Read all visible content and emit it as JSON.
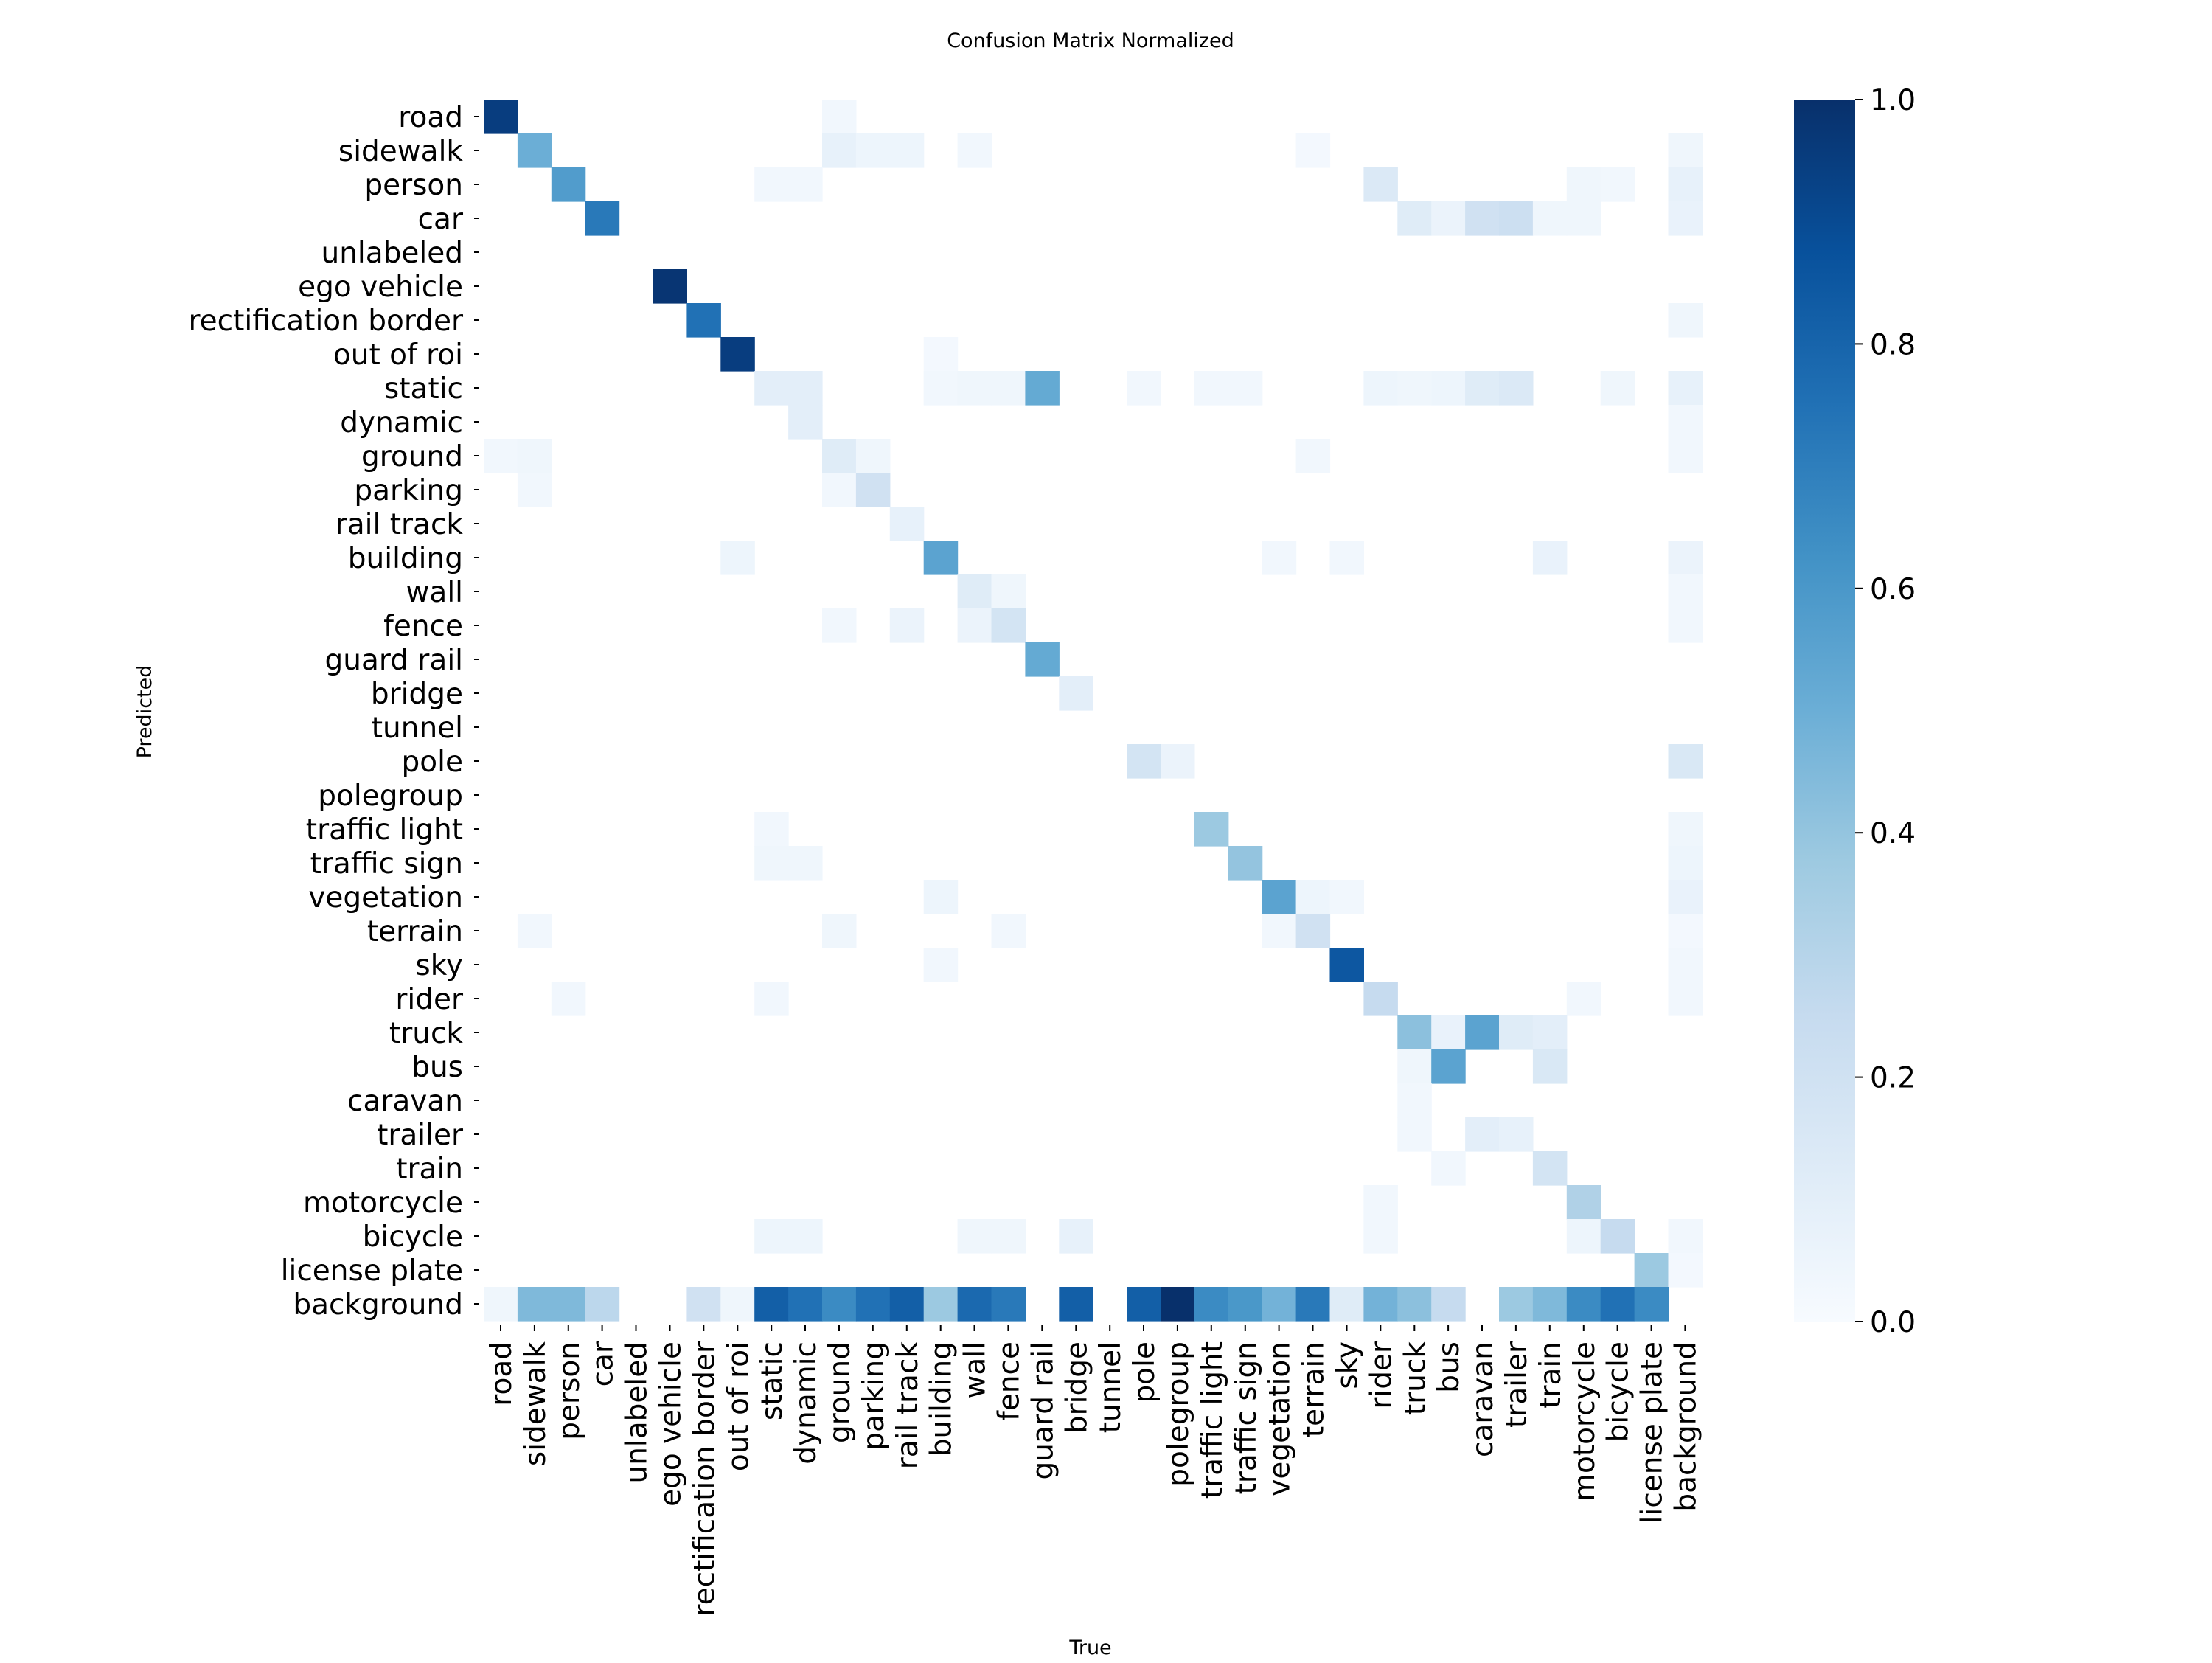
{
  "chart_data": {
    "type": "heatmap",
    "title": "Confusion Matrix Normalized",
    "xlabel": "True",
    "ylabel": "Predicted",
    "labels": [
      "road",
      "sidewalk",
      "person",
      "car",
      "unlabeled",
      "ego vehicle",
      "rectification border",
      "out of roi",
      "static",
      "dynamic",
      "ground",
      "parking",
      "rail track",
      "building",
      "wall",
      "fence",
      "guard rail",
      "bridge",
      "tunnel",
      "pole",
      "polegroup",
      "traffic light",
      "traffic sign",
      "vegetation",
      "terrain",
      "sky",
      "rider",
      "truck",
      "bus",
      "caravan",
      "trailer",
      "train",
      "motorcycle",
      "bicycle",
      "license plate",
      "background"
    ],
    "colorbar": {
      "range": [
        0,
        1
      ],
      "ticks": [
        "0.0",
        "0.2",
        "0.4",
        "0.6",
        "0.8",
        "1.0"
      ],
      "colormap": "Blues"
    },
    "nonzero_cells": [
      {
        "predicted": "road",
        "true": "road",
        "value": 0.95
      },
      {
        "predicted": "road",
        "true": "ground",
        "value": 0.03
      },
      {
        "predicted": "sidewalk",
        "true": "sidewalk",
        "value": 0.5
      },
      {
        "predicted": "sidewalk",
        "true": "ground",
        "value": 0.08
      },
      {
        "predicted": "sidewalk",
        "true": "parking",
        "value": 0.05
      },
      {
        "predicted": "sidewalk",
        "true": "rail track",
        "value": 0.05
      },
      {
        "predicted": "sidewalk",
        "true": "wall",
        "value": 0.03
      },
      {
        "predicted": "sidewalk",
        "true": "terrain",
        "value": 0.02
      },
      {
        "predicted": "sidewalk",
        "true": "background",
        "value": 0.04
      },
      {
        "predicted": "person",
        "true": "person",
        "value": 0.58
      },
      {
        "predicted": "person",
        "true": "static",
        "value": 0.03
      },
      {
        "predicted": "person",
        "true": "dynamic",
        "value": 0.03
      },
      {
        "predicted": "person",
        "true": "rider",
        "value": 0.14
      },
      {
        "predicted": "person",
        "true": "motorcycle",
        "value": 0.04
      },
      {
        "predicted": "person",
        "true": "bicycle",
        "value": 0.03
      },
      {
        "predicted": "person",
        "true": "background",
        "value": 0.08
      },
      {
        "predicted": "car",
        "true": "car",
        "value": 0.72
      },
      {
        "predicted": "car",
        "true": "truck",
        "value": 0.12
      },
      {
        "predicted": "car",
        "true": "bus",
        "value": 0.06
      },
      {
        "predicted": "car",
        "true": "caravan",
        "value": 0.2
      },
      {
        "predicted": "car",
        "true": "trailer",
        "value": 0.22
      },
      {
        "predicted": "car",
        "true": "train",
        "value": 0.04
      },
      {
        "predicted": "car",
        "true": "motorcycle",
        "value": 0.04
      },
      {
        "predicted": "car",
        "true": "background",
        "value": 0.07
      },
      {
        "predicted": "ego vehicle",
        "true": "ego vehicle",
        "value": 0.98
      },
      {
        "predicted": "rectification border",
        "true": "rectification border",
        "value": 0.75
      },
      {
        "predicted": "rectification border",
        "true": "background",
        "value": 0.04
      },
      {
        "predicted": "out of roi",
        "true": "out of roi",
        "value": 0.95
      },
      {
        "predicted": "out of roi",
        "true": "building",
        "value": 0.02
      },
      {
        "predicted": "static",
        "true": "static",
        "value": 0.1
      },
      {
        "predicted": "static",
        "true": "dynamic",
        "value": 0.1
      },
      {
        "predicted": "static",
        "true": "building",
        "value": 0.03
      },
      {
        "predicted": "static",
        "true": "wall",
        "value": 0.04
      },
      {
        "predicted": "static",
        "true": "fence",
        "value": 0.04
      },
      {
        "predicted": "static",
        "true": "guard rail",
        "value": 0.52
      },
      {
        "predicted": "static",
        "true": "pole",
        "value": 0.03
      },
      {
        "predicted": "static",
        "true": "traffic light",
        "value": 0.03
      },
      {
        "predicted": "static",
        "true": "traffic sign",
        "value": 0.03
      },
      {
        "predicted": "static",
        "true": "rider",
        "value": 0.05
      },
      {
        "predicted": "static",
        "true": "truck",
        "value": 0.04
      },
      {
        "predicted": "static",
        "true": "bus",
        "value": 0.05
      },
      {
        "predicted": "static",
        "true": "caravan",
        "value": 0.12
      },
      {
        "predicted": "static",
        "true": "trailer",
        "value": 0.14
      },
      {
        "predicted": "static",
        "true": "bicycle",
        "value": 0.04
      },
      {
        "predicted": "static",
        "true": "background",
        "value": 0.08
      },
      {
        "predicted": "dynamic",
        "true": "dynamic",
        "value": 0.1
      },
      {
        "predicted": "dynamic",
        "true": "background",
        "value": 0.03
      },
      {
        "predicted": "ground",
        "true": "road",
        "value": 0.03
      },
      {
        "predicted": "ground",
        "true": "sidewalk",
        "value": 0.04
      },
      {
        "predicted": "ground",
        "true": "ground",
        "value": 0.12
      },
      {
        "predicted": "ground",
        "true": "parking",
        "value": 0.04
      },
      {
        "predicted": "ground",
        "true": "terrain",
        "value": 0.03
      },
      {
        "predicted": "ground",
        "true": "background",
        "value": 0.03
      },
      {
        "predicted": "parking",
        "true": "sidewalk",
        "value": 0.03
      },
      {
        "predicted": "parking",
        "true": "ground",
        "value": 0.03
      },
      {
        "predicted": "parking",
        "true": "parking",
        "value": 0.2
      },
      {
        "predicted": "rail track",
        "true": "rail track",
        "value": 0.08
      },
      {
        "predicted": "building",
        "true": "out of roi",
        "value": 0.05
      },
      {
        "predicted": "building",
        "true": "building",
        "value": 0.55
      },
      {
        "predicted": "building",
        "true": "vegetation",
        "value": 0.03
      },
      {
        "predicted": "building",
        "true": "sky",
        "value": 0.03
      },
      {
        "predicted": "building",
        "true": "train",
        "value": 0.07
      },
      {
        "predicted": "building",
        "true": "background",
        "value": 0.06
      },
      {
        "predicted": "wall",
        "true": "wall",
        "value": 0.12
      },
      {
        "predicted": "wall",
        "true": "fence",
        "value": 0.04
      },
      {
        "predicted": "wall",
        "true": "background",
        "value": 0.03
      },
      {
        "predicted": "fence",
        "true": "ground",
        "value": 0.03
      },
      {
        "predicted": "fence",
        "true": "rail track",
        "value": 0.06
      },
      {
        "predicted": "fence",
        "true": "wall",
        "value": 0.06
      },
      {
        "predicted": "fence",
        "true": "fence",
        "value": 0.18
      },
      {
        "predicted": "fence",
        "true": "background",
        "value": 0.03
      },
      {
        "predicted": "guard rail",
        "true": "guard rail",
        "value": 0.52
      },
      {
        "predicted": "bridge",
        "true": "bridge",
        "value": 0.1
      },
      {
        "predicted": "pole",
        "true": "pole",
        "value": 0.18
      },
      {
        "predicted": "pole",
        "true": "polegroup",
        "value": 0.06
      },
      {
        "predicted": "pole",
        "true": "background",
        "value": 0.15
      },
      {
        "predicted": "traffic light",
        "true": "static",
        "value": 0.03
      },
      {
        "predicted": "traffic light",
        "true": "traffic light",
        "value": 0.38
      },
      {
        "predicted": "traffic light",
        "true": "background",
        "value": 0.04
      },
      {
        "predicted": "traffic sign",
        "true": "static",
        "value": 0.04
      },
      {
        "predicted": "traffic sign",
        "true": "dynamic",
        "value": 0.04
      },
      {
        "predicted": "traffic sign",
        "true": "traffic sign",
        "value": 0.4
      },
      {
        "predicted": "traffic sign",
        "true": "background",
        "value": 0.05
      },
      {
        "predicted": "vegetation",
        "true": "building",
        "value": 0.05
      },
      {
        "predicted": "vegetation",
        "true": "vegetation",
        "value": 0.55
      },
      {
        "predicted": "vegetation",
        "true": "terrain",
        "value": 0.05
      },
      {
        "predicted": "vegetation",
        "true": "sky",
        "value": 0.03
      },
      {
        "predicted": "vegetation",
        "true": "background",
        "value": 0.07
      },
      {
        "predicted": "terrain",
        "true": "sidewalk",
        "value": 0.03
      },
      {
        "predicted": "terrain",
        "true": "ground",
        "value": 0.04
      },
      {
        "predicted": "terrain",
        "true": "fence",
        "value": 0.03
      },
      {
        "predicted": "terrain",
        "true": "vegetation",
        "value": 0.03
      },
      {
        "predicted": "terrain",
        "true": "terrain",
        "value": 0.2
      },
      {
        "predicted": "terrain",
        "true": "background",
        "value": 0.02
      },
      {
        "predicted": "sky",
        "true": "building",
        "value": 0.03
      },
      {
        "predicted": "sky",
        "true": "sky",
        "value": 0.85
      },
      {
        "predicted": "sky",
        "true": "background",
        "value": 0.03
      },
      {
        "predicted": "rider",
        "true": "person",
        "value": 0.03
      },
      {
        "predicted": "rider",
        "true": "static",
        "value": 0.03
      },
      {
        "predicted": "rider",
        "true": "rider",
        "value": 0.25
      },
      {
        "predicted": "rider",
        "true": "motorcycle",
        "value": 0.03
      },
      {
        "predicted": "rider",
        "true": "background",
        "value": 0.03
      },
      {
        "predicted": "truck",
        "true": "truck",
        "value": 0.42
      },
      {
        "predicted": "truck",
        "true": "bus",
        "value": 0.07
      },
      {
        "predicted": "truck",
        "true": "caravan",
        "value": 0.55
      },
      {
        "predicted": "truck",
        "true": "trailer",
        "value": 0.12
      },
      {
        "predicted": "truck",
        "true": "train",
        "value": 0.1
      },
      {
        "predicted": "bus",
        "true": "truck",
        "value": 0.04
      },
      {
        "predicted": "bus",
        "true": "bus",
        "value": 0.55
      },
      {
        "predicted": "bus",
        "true": "train",
        "value": 0.15
      },
      {
        "predicted": "caravan",
        "true": "truck",
        "value": 0.03
      },
      {
        "predicted": "trailer",
        "true": "truck",
        "value": 0.03
      },
      {
        "predicted": "trailer",
        "true": "caravan",
        "value": 0.1
      },
      {
        "predicted": "trailer",
        "true": "trailer",
        "value": 0.08
      },
      {
        "predicted": "train",
        "true": "bus",
        "value": 0.03
      },
      {
        "predicted": "train",
        "true": "train",
        "value": 0.18
      },
      {
        "predicted": "motorcycle",
        "true": "rider",
        "value": 0.03
      },
      {
        "predicted": "motorcycle",
        "true": "motorcycle",
        "value": 0.32
      },
      {
        "predicted": "bicycle",
        "true": "static",
        "value": 0.05
      },
      {
        "predicted": "bicycle",
        "true": "dynamic",
        "value": 0.05
      },
      {
        "predicted": "bicycle",
        "true": "wall",
        "value": 0.04
      },
      {
        "predicted": "bicycle",
        "true": "fence",
        "value": 0.04
      },
      {
        "predicted": "bicycle",
        "true": "bridge",
        "value": 0.08
      },
      {
        "predicted": "bicycle",
        "true": "rider",
        "value": 0.03
      },
      {
        "predicted": "bicycle",
        "true": "motorcycle",
        "value": 0.05
      },
      {
        "predicted": "bicycle",
        "true": "bicycle",
        "value": 0.25
      },
      {
        "predicted": "bicycle",
        "true": "background",
        "value": 0.03
      },
      {
        "predicted": "license plate",
        "true": "license plate",
        "value": 0.38
      },
      {
        "predicted": "license plate",
        "true": "background",
        "value": 0.02
      },
      {
        "predicted": "background",
        "true": "road",
        "value": 0.04
      },
      {
        "predicted": "background",
        "true": "sidewalk",
        "value": 0.45
      },
      {
        "predicted": "background",
        "true": "person",
        "value": 0.45
      },
      {
        "predicted": "background",
        "true": "car",
        "value": 0.28
      },
      {
        "predicted": "background",
        "true": "rectification border",
        "value": 0.2
      },
      {
        "predicted": "background",
        "true": "out of roi",
        "value": 0.04
      },
      {
        "predicted": "background",
        "true": "static",
        "value": 0.82
      },
      {
        "predicted": "background",
        "true": "dynamic",
        "value": 0.75
      },
      {
        "predicted": "background",
        "true": "ground",
        "value": 0.65
      },
      {
        "predicted": "background",
        "true": "parking",
        "value": 0.75
      },
      {
        "predicted": "background",
        "true": "rail track",
        "value": 0.82
      },
      {
        "predicted": "background",
        "true": "building",
        "value": 0.38
      },
      {
        "predicted": "background",
        "true": "wall",
        "value": 0.78
      },
      {
        "predicted": "background",
        "true": "fence",
        "value": 0.72
      },
      {
        "predicted": "background",
        "true": "bridge",
        "value": 0.82
      },
      {
        "predicted": "background",
        "true": "pole",
        "value": 0.82
      },
      {
        "predicted": "background",
        "true": "polegroup",
        "value": 1.0
      },
      {
        "predicted": "background",
        "true": "traffic light",
        "value": 0.65
      },
      {
        "predicted": "background",
        "true": "traffic sign",
        "value": 0.6
      },
      {
        "predicted": "background",
        "true": "vegetation",
        "value": 0.48
      },
      {
        "predicted": "background",
        "true": "terrain",
        "value": 0.72
      },
      {
        "predicted": "background",
        "true": "sky",
        "value": 0.12
      },
      {
        "predicted": "background",
        "true": "rider",
        "value": 0.48
      },
      {
        "predicted": "background",
        "true": "truck",
        "value": 0.42
      },
      {
        "predicted": "background",
        "true": "bus",
        "value": 0.25
      },
      {
        "predicted": "background",
        "true": "trailer",
        "value": 0.38
      },
      {
        "predicted": "background",
        "true": "train",
        "value": 0.45
      },
      {
        "predicted": "background",
        "true": "motorcycle",
        "value": 0.65
      },
      {
        "predicted": "background",
        "true": "bicycle",
        "value": 0.75
      },
      {
        "predicted": "background",
        "true": "license plate",
        "value": 0.65
      }
    ]
  }
}
